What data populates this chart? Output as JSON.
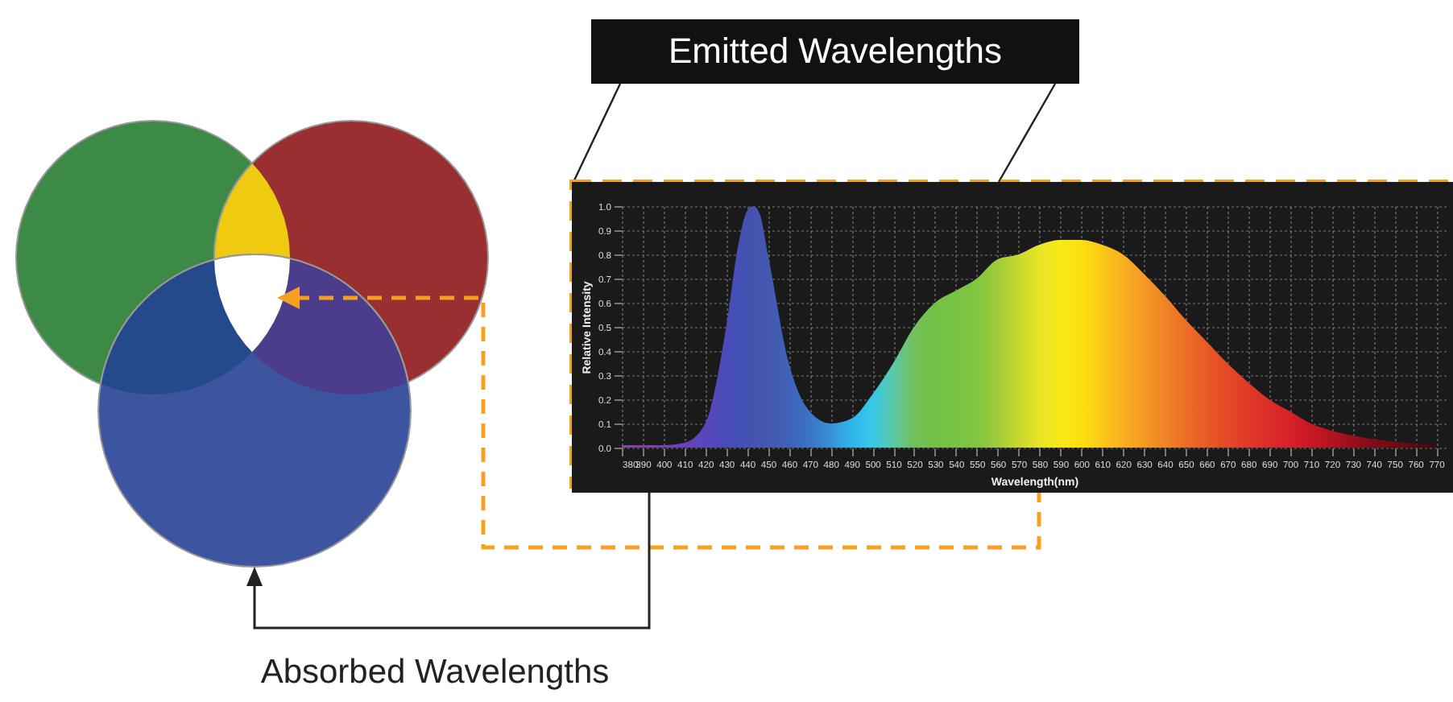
{
  "chart_data": {
    "type": "area",
    "title": "Emitted Wavelengths",
    "xlabel": "Wavelength(nm)",
    "ylabel": "Relative Intensity",
    "annotations": [
      "Absorbed Wavelengths"
    ],
    "x": [
      380,
      400,
      410,
      420,
      430,
      436,
      440,
      443,
      446,
      450,
      460,
      470,
      480,
      490,
      500,
      510,
      520,
      530,
      540,
      550,
      560,
      570,
      580,
      590,
      600,
      610,
      620,
      630,
      640,
      650,
      660,
      670,
      680,
      690,
      700,
      710,
      720,
      730,
      740,
      750,
      760,
      770
    ],
    "series": [
      {
        "values": [
          0.01,
          0.01,
          0.02,
          0.1,
          0.5,
          0.85,
          0.98,
          1.0,
          0.97,
          0.8,
          0.35,
          0.15,
          0.1,
          0.12,
          0.22,
          0.35,
          0.5,
          0.6,
          0.65,
          0.7,
          0.78,
          0.8,
          0.84,
          0.86,
          0.86,
          0.84,
          0.8,
          0.72,
          0.63,
          0.53,
          0.44,
          0.35,
          0.27,
          0.2,
          0.15,
          0.1,
          0.07,
          0.05,
          0.035,
          0.025,
          0.015,
          0.01
        ],
        "colors": [
          "#8a3fb0",
          "#7b3fb8",
          "#6a42bb",
          "#5a46bb",
          "#4a4ab8",
          "#4450b5",
          "#4452b2",
          "#4454b0",
          "#4456b0",
          "#4458b0",
          "#3f62b8",
          "#3a74c6",
          "#3890d8",
          "#2fb6ea",
          "#36c8e8",
          "#5cc8a8",
          "#72c05a",
          "#74c046",
          "#78c442",
          "#80c642",
          "#a0cc3a",
          "#c8d830",
          "#e8e428",
          "#f8e818",
          "#fde010",
          "#fcc818",
          "#f8b020",
          "#f49a24",
          "#f08426",
          "#ec6e26",
          "#e85a26",
          "#e44826",
          "#e03a28",
          "#dc2c28",
          "#d82028",
          "#c81824",
          "#b01420",
          "#98101c",
          "#800c18",
          "#700a14",
          "#600810",
          "#50060c"
        ]
      }
    ],
    "xlim": [
      380,
      775
    ],
    "xticks": [
      380,
      390,
      400,
      410,
      420,
      430,
      440,
      450,
      460,
      470,
      480,
      490,
      500,
      510,
      520,
      530,
      540,
      550,
      560,
      570,
      580,
      590,
      600,
      610,
      620,
      630,
      640,
      650,
      660,
      670,
      680,
      690,
      700,
      710,
      720,
      730,
      740,
      750,
      760,
      770
    ],
    "ylim": [
      0,
      1
    ],
    "yticks": [
      {
        "value": 0,
        "label": "0.0"
      },
      0.1,
      0.2,
      0.3,
      0.4,
      0.5,
      0.6,
      0.7,
      0.8,
      0.9,
      {
        "value": 1,
        "label": "1.0"
      }
    ],
    "grid": true
  }
}
